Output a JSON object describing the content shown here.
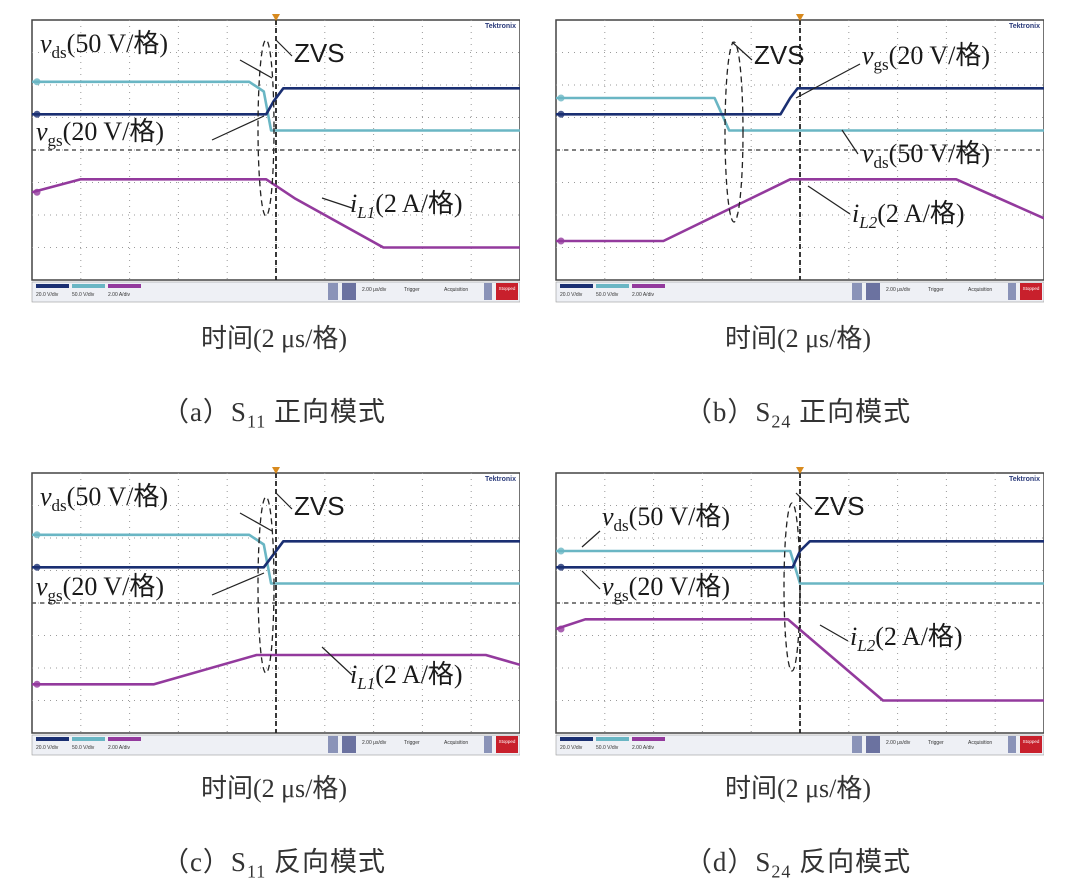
{
  "colors": {
    "vds": "#6ab6c4",
    "vgs": "#1a2f72",
    "iL": "#933a9d",
    "grid": "#555555",
    "dot": "#9a9a9a",
    "trigger": "#d88a1e",
    "label_text": "#1a1a1a",
    "red_button": "#c8202c"
  },
  "scope_brand": "Tektronix",
  "scope_readouts": {
    "ch_vgs": "20.0 V/div",
    "ch_vds": "50.0 V/div",
    "ch_il": "2.00 A/div",
    "timebase": "2.00 μs/div",
    "acquisition": "Acquisition",
    "trigger_label": "Trigger",
    "stop_label": "Stopped"
  },
  "charts": [
    {
      "caption_prefix": "（a）S",
      "caption_sub": "11",
      "caption_suffix": " 正向模式",
      "xlabel": "时间(2 μs/格)",
      "zvs_text": "ZVS",
      "labels": {
        "vds": {
          "v": "v",
          "sub": "ds",
          "unit": "(50 V/格)"
        },
        "vgs": {
          "v": "v",
          "sub": "gs",
          "unit": "(20 V/格)"
        },
        "il": {
          "v": "i",
          "sub": "L1",
          "unit": "(2 A/格)"
        }
      }
    },
    {
      "caption_prefix": "（b）S",
      "caption_sub": "24",
      "caption_suffix": " 正向模式",
      "xlabel": "时间(2 μs/格)",
      "zvs_text": "ZVS",
      "labels": {
        "vds": {
          "v": "v",
          "sub": "ds",
          "unit": "(50 V/格)"
        },
        "vgs": {
          "v": "v",
          "sub": "gs",
          "unit": "(20 V/格)"
        },
        "il": {
          "v": "i",
          "sub": "L2",
          "unit": "(2 A/格)"
        }
      }
    },
    {
      "caption_prefix": "（c）S",
      "caption_sub": "11",
      "caption_suffix": " 反向模式",
      "xlabel": "时间(2 μs/格)",
      "zvs_text": "ZVS",
      "labels": {
        "vds": {
          "v": "v",
          "sub": "ds",
          "unit": "(50 V/格)"
        },
        "vgs": {
          "v": "v",
          "sub": "gs",
          "unit": "(20 V/格)"
        },
        "il": {
          "v": "i",
          "sub": "L1",
          "unit": "(2 A/格)"
        }
      }
    },
    {
      "caption_prefix": "（d）S",
      "caption_sub": "24",
      "caption_suffix": " 反向模式",
      "xlabel": "时间(2 μs/格)",
      "zvs_text": "ZVS",
      "labels": {
        "vds": {
          "v": "v",
          "sub": "ds",
          "unit": "(50 V/格)"
        },
        "vgs": {
          "v": "v",
          "sub": "gs",
          "unit": "(20 V/格)"
        },
        "il": {
          "v": "i",
          "sub": "L2",
          "unit": "(2 A/格)"
        }
      }
    }
  ],
  "chart_data": [
    {
      "type": "line",
      "title": "（a）S11 正向模式",
      "xlabel": "时间(2 μs/格)",
      "xlim": [
        0,
        10
      ],
      "ylim": [
        0,
        8
      ],
      "series": [
        {
          "name": "vds(50 V/格)",
          "x": [
            0,
            4.45,
            4.75,
            4.9,
            10
          ],
          "y": [
            6.1,
            6.1,
            5.8,
            4.6,
            4.6
          ]
        },
        {
          "name": "vgs(20 V/格)",
          "x": [
            0,
            4.8,
            4.95,
            5.15,
            10
          ],
          "y": [
            5.1,
            5.1,
            5.5,
            5.9,
            5.9
          ]
        },
        {
          "name": "iL1(2 A/格)",
          "x": [
            0,
            1.0,
            4.8,
            5.4,
            7.2,
            10
          ],
          "y": [
            2.7,
            3.1,
            3.1,
            2.5,
            1.0,
            1.0
          ]
        }
      ]
    },
    {
      "type": "line",
      "title": "（b）S24 正向模式",
      "xlabel": "时间(2 μs/格)",
      "xlim": [
        0,
        10
      ],
      "ylim": [
        0,
        8
      ],
      "series": [
        {
          "name": "vds(50 V/格)",
          "x": [
            0,
            3.25,
            3.55,
            10
          ],
          "y": [
            5.6,
            5.6,
            4.6,
            4.6
          ]
        },
        {
          "name": "vgs(20 V/格)",
          "x": [
            0,
            4.6,
            4.8,
            4.95,
            10
          ],
          "y": [
            5.1,
            5.1,
            5.6,
            5.9,
            5.9
          ]
        },
        {
          "name": "iL2(2 A/格)",
          "x": [
            0,
            2.2,
            4.8,
            8.2,
            10
          ],
          "y": [
            1.2,
            1.2,
            3.1,
            3.1,
            1.9
          ]
        }
      ]
    },
    {
      "type": "line",
      "title": "（c）S11 反向模式",
      "xlabel": "时间(2 μs/格)",
      "xlim": [
        0,
        10
      ],
      "ylim": [
        0,
        8
      ],
      "series": [
        {
          "name": "vds(50 V/格)",
          "x": [
            0,
            4.45,
            4.75,
            4.9,
            10
          ],
          "y": [
            6.1,
            6.1,
            5.8,
            4.6,
            4.6
          ]
        },
        {
          "name": "vgs(20 V/格)",
          "x": [
            0,
            4.75,
            4.95,
            5.15,
            10
          ],
          "y": [
            5.1,
            5.1,
            5.5,
            5.9,
            5.9
          ]
        },
        {
          "name": "iL1(2 A/格)",
          "x": [
            0,
            2.5,
            4.6,
            9.3,
            10
          ],
          "y": [
            1.5,
            1.5,
            2.4,
            2.4,
            2.1
          ]
        }
      ]
    },
    {
      "type": "line",
      "title": "（d）S24 反向模式",
      "xlabel": "时间(2 μs/格)",
      "xlim": [
        0,
        10
      ],
      "ylim": [
        0,
        8
      ],
      "series": [
        {
          "name": "vds(50 V/格)",
          "x": [
            0,
            4.8,
            5.0,
            10
          ],
          "y": [
            5.6,
            5.6,
            4.6,
            4.6
          ]
        },
        {
          "name": "vgs(20 V/格)",
          "x": [
            0,
            4.85,
            5.0,
            5.2,
            10
          ],
          "y": [
            5.1,
            5.1,
            5.6,
            5.9,
            5.9
          ]
        },
        {
          "name": "iL2(2 A/格)",
          "x": [
            0,
            0.6,
            4.75,
            6.7,
            10
          ],
          "y": [
            3.2,
            3.5,
            3.5,
            1.0,
            1.0
          ]
        }
      ]
    }
  ]
}
